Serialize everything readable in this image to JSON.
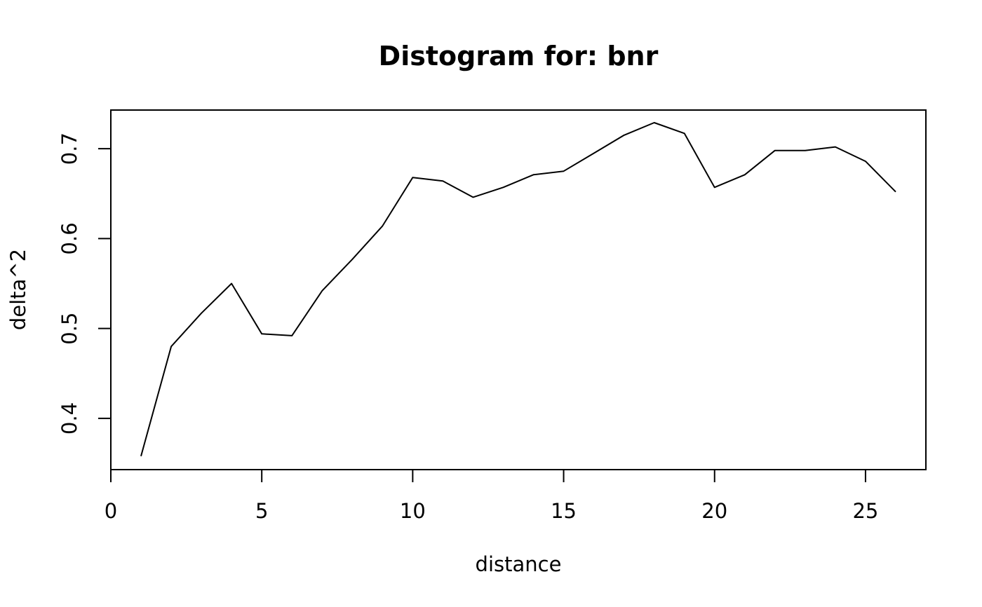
{
  "chart_data": {
    "type": "line",
    "title": "Distogram for: bnr",
    "xlabel": "distance",
    "ylabel": "delta^2",
    "xlim": [
      0,
      27
    ],
    "ylim": [
      0.343,
      0.743
    ],
    "x_ticks": [
      0,
      5,
      10,
      15,
      20,
      25
    ],
    "y_ticks": [
      0.4,
      0.5,
      0.6,
      0.7
    ],
    "grid": false,
    "legend": "none",
    "line_color": "#000000",
    "x": [
      1,
      2,
      3,
      4,
      5,
      6,
      7,
      8,
      9,
      10,
      11,
      12,
      13,
      14,
      15,
      16,
      17,
      18,
      19,
      20,
      21,
      22,
      23,
      24,
      25,
      26
    ],
    "values": [
      0.358,
      0.48,
      0.517,
      0.55,
      0.494,
      0.492,
      0.542,
      0.577,
      0.614,
      0.668,
      0.664,
      0.646,
      0.657,
      0.671,
      0.675,
      0.695,
      0.715,
      0.729,
      0.717,
      0.657,
      0.671,
      0.698,
      0.698,
      0.702,
      0.686,
      0.652
    ]
  }
}
